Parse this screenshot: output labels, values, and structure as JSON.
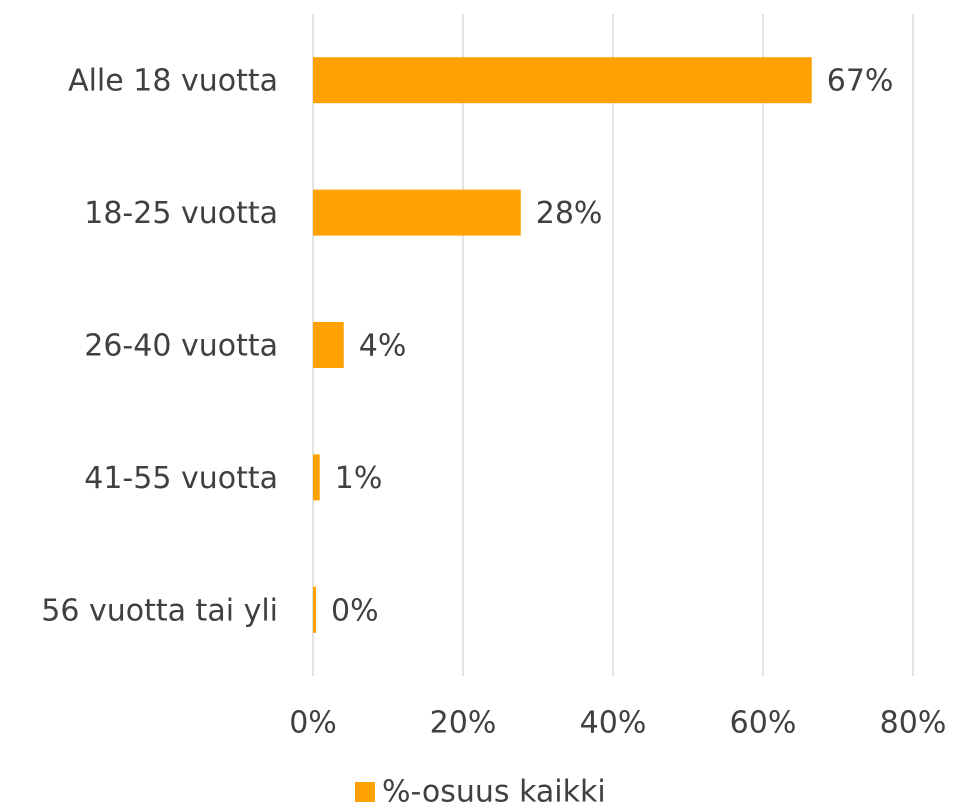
{
  "chart_data": {
    "type": "bar",
    "orientation": "horizontal",
    "categories": [
      "Alle 18 vuotta",
      "18-25 vuotta",
      "26-40 vuotta",
      "41-55 vuotta",
      "56 vuotta tai yli"
    ],
    "series": [
      {
        "name": "%-osuus kaikki",
        "color": "#ffa100",
        "values": [
          66.5,
          27.7,
          4.1,
          0.9,
          0.4
        ],
        "value_labels": [
          "67%",
          "28%",
          "4%",
          "1%",
          "0%"
        ]
      }
    ],
    "xlim": [
      0,
      80
    ],
    "xticks": [
      {
        "value": 0,
        "label": "0%"
      },
      {
        "value": 20,
        "label": "20%"
      },
      {
        "value": 40,
        "label": "40%"
      },
      {
        "value": 60,
        "label": "60%"
      },
      {
        "value": 80,
        "label": "80%"
      }
    ],
    "grid": true,
    "legend": "bottom"
  }
}
